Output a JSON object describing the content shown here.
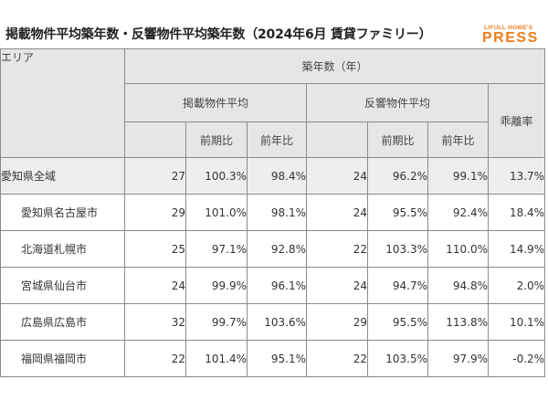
{
  "title": "掲載物件平均築年数・反響物件平均築年数（2024年6月 賃貸ファミリー）",
  "logo": {
    "small": "LIFULL HOME'S",
    "big": "PRESS",
    "color": "#ee7d1c"
  },
  "header": {
    "area": "エリア",
    "age": "築年数（年）",
    "listed": "掲載物件平均",
    "response": "反響物件平均",
    "divergence": "乖離率",
    "prev_period": "前期比",
    "prev_year": "前年比"
  },
  "rows": [
    {
      "area": "愛知県全域",
      "listed": "27",
      "listed_pp": "100.3%",
      "listed_py": "98.4%",
      "resp": "24",
      "resp_pp": "96.2%",
      "resp_py": "99.1%",
      "div": "13.7%"
    },
    {
      "area": "愛知県名古屋市",
      "listed": "29",
      "listed_pp": "101.0%",
      "listed_py": "98.1%",
      "resp": "24",
      "resp_pp": "95.5%",
      "resp_py": "92.4%",
      "div": "18.4%"
    },
    {
      "area": "北海道札幌市",
      "listed": "25",
      "listed_pp": "97.1%",
      "listed_py": "92.8%",
      "resp": "22",
      "resp_pp": "103.3%",
      "resp_py": "110.0%",
      "div": "14.9%"
    },
    {
      "area": "宮城県仙台市",
      "listed": "24",
      "listed_pp": "99.9%",
      "listed_py": "96.1%",
      "resp": "24",
      "resp_pp": "94.7%",
      "resp_py": "94.8%",
      "div": "2.0%"
    },
    {
      "area": "広島県広島市",
      "listed": "32",
      "listed_pp": "99.7%",
      "listed_py": "103.6%",
      "resp": "29",
      "resp_pp": "95.5%",
      "resp_py": "113.8%",
      "div": "10.1%"
    },
    {
      "area": "福岡県福岡市",
      "listed": "22",
      "listed_pp": "101.4%",
      "listed_py": "95.1%",
      "resp": "22",
      "resp_pp": "103.5%",
      "resp_py": "97.9%",
      "div": "-0.2%"
    }
  ]
}
